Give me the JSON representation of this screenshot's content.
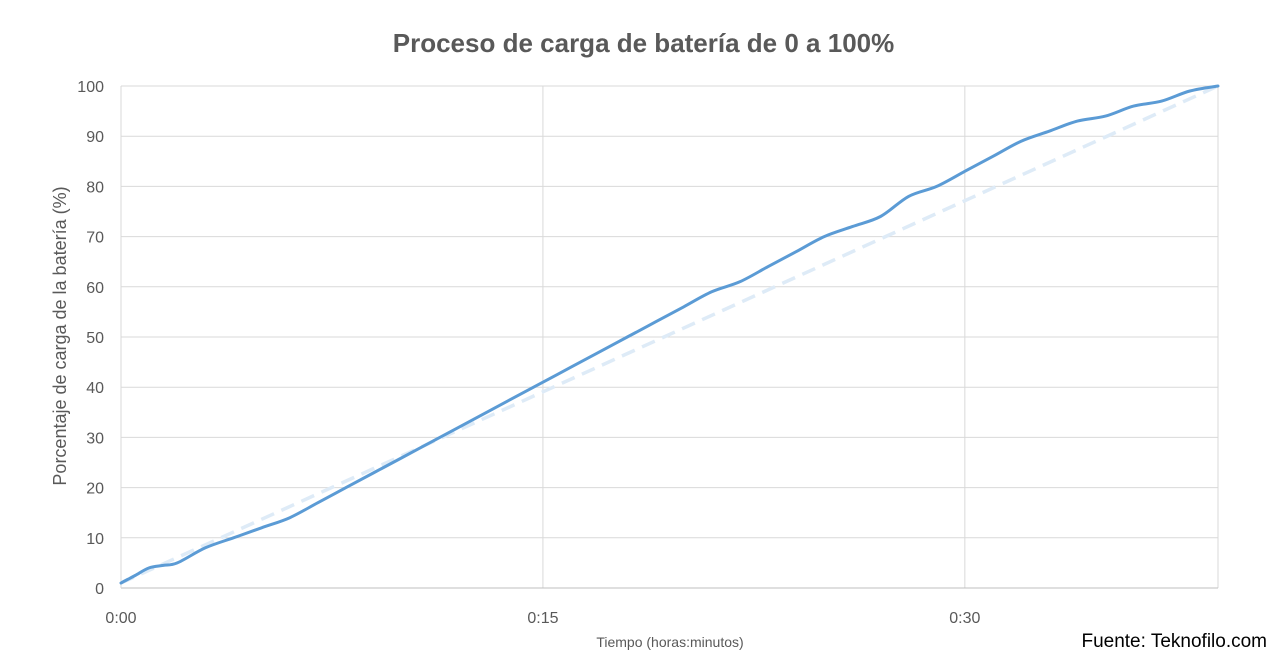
{
  "title": "Proceso de carga de batería de 0 a 100%",
  "source": "Fuente: Teknofilo.com",
  "chart_data": {
    "type": "line",
    "title": "Proceso de carga de batería de 0 a 100%",
    "xlabel": "Tiempo (horas:minutos)",
    "ylabel": "Porcentaje de carga de la batería (%)",
    "xlim": [
      0,
      39
    ],
    "ylim": [
      0,
      100
    ],
    "x_ticks": [
      {
        "value": 0,
        "label": "0:00"
      },
      {
        "value": 15,
        "label": "0:15"
      },
      {
        "value": 30,
        "label": "0:30"
      }
    ],
    "y_ticks": [
      0,
      10,
      20,
      30,
      40,
      50,
      60,
      70,
      80,
      90,
      100
    ],
    "grid": true,
    "series": [
      {
        "style": "solid",
        "color": "#5b9bd5",
        "x": [
          0,
          0.5,
          1,
          1.5,
          2,
          3,
          4,
          5,
          6,
          7,
          8,
          9,
          10,
          11,
          12,
          13,
          14,
          15,
          16,
          17,
          18,
          19,
          20,
          21,
          22,
          23,
          24,
          25,
          26,
          27,
          28,
          29,
          30,
          31,
          32,
          33,
          34,
          35,
          36,
          37,
          38,
          39
        ],
        "values": [
          1,
          2.5,
          4,
          4.5,
          5,
          8,
          10,
          12,
          14,
          17,
          20,
          23,
          26,
          29,
          32,
          35,
          38,
          41,
          44,
          47,
          50,
          53,
          56,
          59,
          61,
          64,
          67,
          70,
          72,
          74,
          78,
          80,
          83,
          86,
          89,
          91,
          93,
          94,
          96,
          97,
          99,
          100
        ]
      },
      {
        "style": "dashed",
        "color": "#deebf7",
        "x": [
          0,
          39
        ],
        "values": [
          1,
          100
        ]
      }
    ]
  }
}
